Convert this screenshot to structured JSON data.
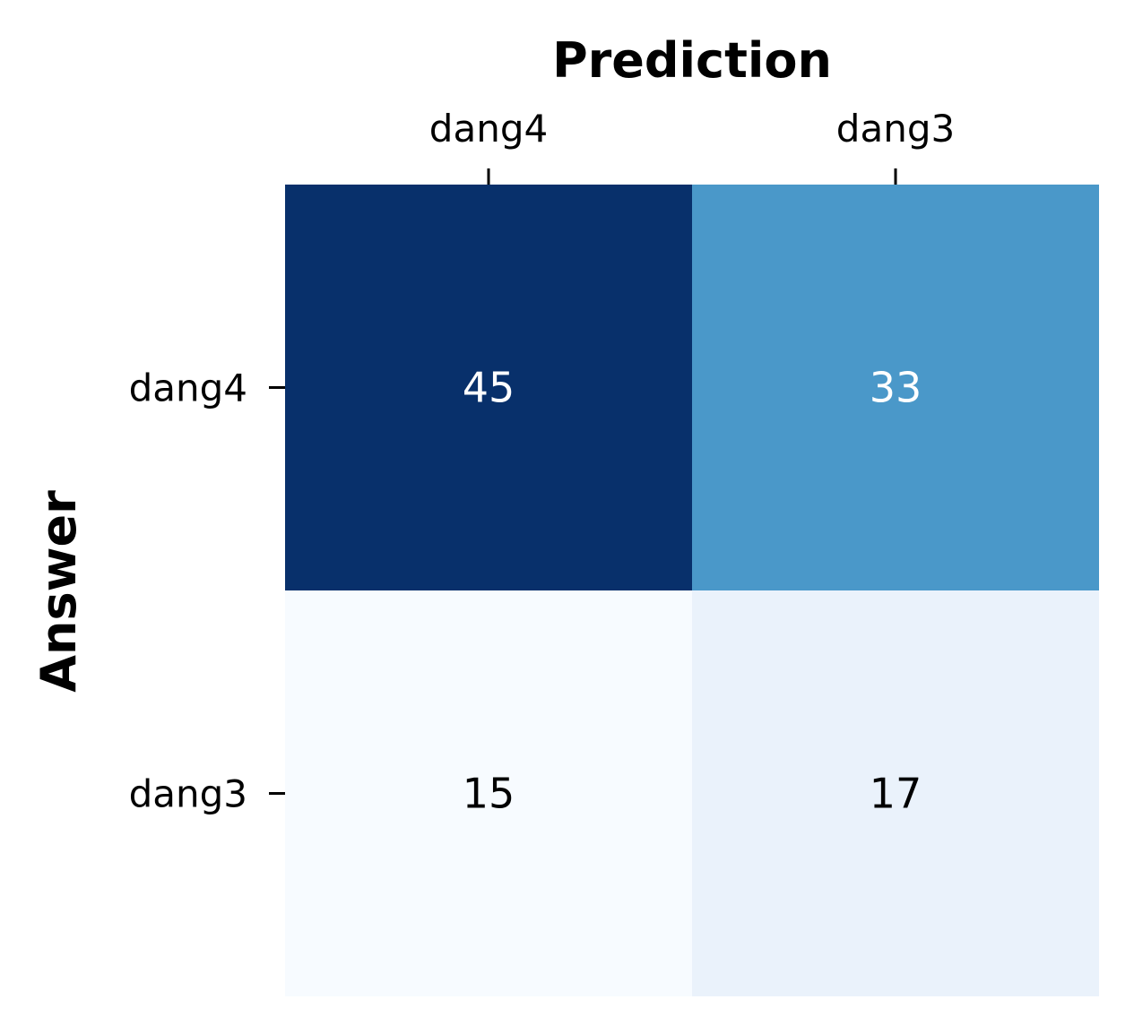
{
  "chart_data": {
    "type": "heatmap",
    "xlabel": "Prediction",
    "ylabel": "Answer",
    "x_categories": [
      "dang4",
      "dang3"
    ],
    "y_categories": [
      "dang4",
      "dang3"
    ],
    "values": [
      [
        45,
        33
      ],
      [
        15,
        17
      ]
    ],
    "colorscale": "Blues",
    "value_range": [
      15,
      45
    ],
    "x_axis_position": "top",
    "colorbar": false,
    "colors": {
      "low": "#f7fbff",
      "mid": "#4a98c9",
      "high": "#08306b",
      "text_on_dark": "#ffffff",
      "text_on_light": "#000000"
    }
  }
}
